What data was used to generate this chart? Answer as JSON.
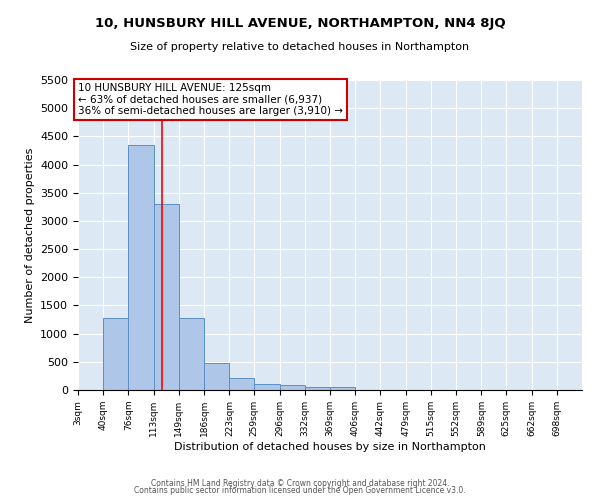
{
  "title": "10, HUNSBURY HILL AVENUE, NORTHAMPTON, NN4 8JQ",
  "subtitle": "Size of property relative to detached houses in Northampton",
  "xlabel": "Distribution of detached houses by size in Northampton",
  "ylabel": "Number of detached properties",
  "bar_color": "#aec6e8",
  "bar_edge_color": "#5a8fc2",
  "background_color": "#dde8f5",
  "annotation_text": "10 HUNSBURY HILL AVENUE: 125sqm\n← 63% of detached houses are smaller (6,937)\n36% of semi-detached houses are larger (3,910) →",
  "red_line_x": 125,
  "ylim": [
    0,
    5500
  ],
  "yticks": [
    0,
    500,
    1000,
    1500,
    2000,
    2500,
    3000,
    3500,
    4000,
    4500,
    5000,
    5500
  ],
  "bin_edges": [
    3,
    40,
    76,
    113,
    149,
    186,
    223,
    259,
    296,
    332,
    369,
    406,
    442,
    479,
    515,
    552,
    589,
    625,
    662,
    698,
    735
  ],
  "bar_heights": [
    0,
    1270,
    4350,
    3300,
    1270,
    480,
    220,
    100,
    80,
    60,
    60,
    0,
    0,
    0,
    0,
    0,
    0,
    0,
    0,
    0
  ],
  "footer_line1": "Contains HM Land Registry data © Crown copyright and database right 2024.",
  "footer_line2": "Contains public sector information licensed under the Open Government Licence v3.0."
}
